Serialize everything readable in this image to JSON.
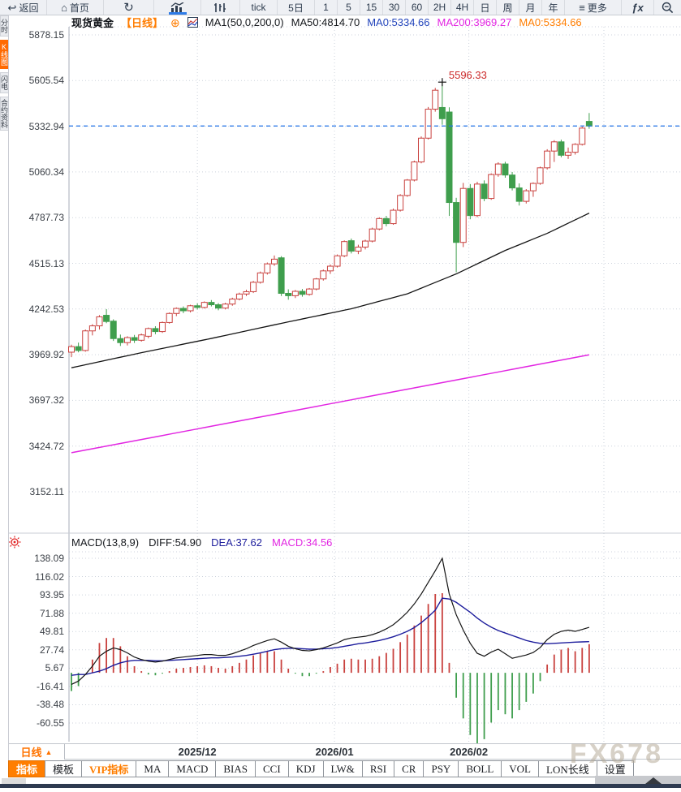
{
  "toolbar": {
    "back": "返回",
    "home": "首页",
    "tick": "tick",
    "five_day": "5日",
    "intervals": [
      "1",
      "5",
      "15",
      "30",
      "60",
      "2H",
      "4H",
      "日",
      "周",
      "月",
      "年"
    ],
    "more": "更多",
    "fx": "ƒx"
  },
  "sidebar": {
    "items": [
      {
        "label": "分时图",
        "active": false
      },
      {
        "label": "K线图",
        "active": true
      },
      {
        "label": "闪电图",
        "active": false
      },
      {
        "label": "合约资料",
        "active": false
      }
    ]
  },
  "chart_header": {
    "symbol": "现货黄金",
    "period": "【日线】",
    "ma_settings": "MA1(50,0,200,0)",
    "ma50": "MA50:4814.70",
    "ma0_blue": "MA0:5334.66",
    "ma200": "MA200:3969.27",
    "ma0_orange": "MA0:5334.66"
  },
  "macd_header": {
    "name": "MACD(13,8,9)",
    "diff": "DIFF:54.90",
    "dea": "DEA:37.62",
    "macd": "MACD:34.56"
  },
  "xaxis": {
    "period_label": "日线",
    "arrow": "▲"
  },
  "tabs": [
    {
      "label": "指标"
    },
    {
      "label": "模板"
    },
    {
      "label": "VIP指标"
    },
    {
      "label": "MA"
    },
    {
      "label": "MACD"
    },
    {
      "label": "BIAS"
    },
    {
      "label": "CCI"
    },
    {
      "label": "KDJ"
    },
    {
      "label": "LW&"
    },
    {
      "label": "RSI"
    },
    {
      "label": "CR"
    },
    {
      "label": "PSY"
    },
    {
      "label": "BOLL"
    },
    {
      "label": "VOL"
    },
    {
      "label": "LON长线"
    },
    {
      "label": "设置"
    }
  ],
  "watermark": "FX678",
  "chart_data": {
    "type": "candlestick",
    "title": "现货黄金 日线",
    "y_ticks_price": [
      5878.15,
      5605.54,
      5332.94,
      5060.34,
      4787.73,
      4515.13,
      4242.53,
      3969.92,
      3697.32,
      3424.72,
      3152.11
    ],
    "y_ticks_macd": [
      138.09,
      116.02,
      93.95,
      71.88,
      49.81,
      27.74,
      5.67,
      -16.41,
      -38.48,
      -60.55
    ],
    "x_labels": [
      {
        "label": "2025/12",
        "day": 18
      },
      {
        "label": "2026/01",
        "day": 37.6
      },
      {
        "label": "2026/02",
        "day": 56.8
      }
    ],
    "extra_grid_day": 76.1,
    "current_price": 5334.66,
    "high_annotation": {
      "value": "5596.33",
      "day": 53,
      "price": 5596.33
    },
    "ma50_anchors": [
      [
        0,
        3892
      ],
      [
        10,
        3982
      ],
      [
        20,
        4067
      ],
      [
        30,
        4157
      ],
      [
        40,
        4244
      ],
      [
        48,
        4333
      ],
      [
        55,
        4452
      ],
      [
        62,
        4592
      ],
      [
        68,
        4694
      ],
      [
        74,
        4814.7
      ]
    ],
    "ma200_anchors": [
      [
        0,
        3385
      ],
      [
        74,
        3969.27
      ]
    ],
    "candles": [
      [
        3985,
        4030,
        3955,
        4018
      ],
      [
        4018,
        4042,
        3984,
        3995
      ],
      [
        3995,
        4120,
        3988,
        4112
      ],
      [
        4112,
        4152,
        4085,
        4142
      ],
      [
        4142,
        4206,
        4120,
        4196
      ],
      [
        4205,
        4242,
        4158,
        4168
      ],
      [
        4170,
        4181,
        4052,
        4066
      ],
      [
        4066,
        4090,
        4022,
        4042
      ],
      [
        4042,
        4080,
        4025,
        4072
      ],
      [
        4072,
        4088,
        4040,
        4056
      ],
      [
        4056,
        4096,
        4048,
        4088
      ],
      [
        4080,
        4132,
        4068,
        4126
      ],
      [
        4126,
        4140,
        4092,
        4108
      ],
      [
        4108,
        4168,
        4100,
        4162
      ],
      [
        4162,
        4222,
        4155,
        4216
      ],
      [
        4216,
        4252,
        4200,
        4246
      ],
      [
        4246,
        4258,
        4218,
        4232
      ],
      [
        4232,
        4268,
        4222,
        4262
      ],
      [
        4262,
        4276,
        4240,
        4252
      ],
      [
        4252,
        4288,
        4245,
        4282
      ],
      [
        4282,
        4296,
        4258,
        4268
      ],
      [
        4268,
        4278,
        4235,
        4248
      ],
      [
        4248,
        4280,
        4240,
        4272
      ],
      [
        4272,
        4310,
        4262,
        4302
      ],
      [
        4302,
        4340,
        4294,
        4332
      ],
      [
        4332,
        4358,
        4320,
        4346
      ],
      [
        4346,
        4410,
        4338,
        4402
      ],
      [
        4402,
        4466,
        4394,
        4458
      ],
      [
        4458,
        4520,
        4448,
        4512
      ],
      [
        4512,
        4562,
        4500,
        4540
      ],
      [
        4548,
        4558,
        4320,
        4336
      ],
      [
        4336,
        4360,
        4298,
        4322
      ],
      [
        4322,
        4356,
        4308,
        4348
      ],
      [
        4348,
        4362,
        4316,
        4330
      ],
      [
        4330,
        4368,
        4322,
        4362
      ],
      [
        4362,
        4428,
        4354,
        4422
      ],
      [
        4422,
        4478,
        4412,
        4470
      ],
      [
        4470,
        4508,
        4452,
        4498
      ],
      [
        4498,
        4568,
        4490,
        4560
      ],
      [
        4560,
        4652,
        4552,
        4645
      ],
      [
        4650,
        4663,
        4574,
        4588
      ],
      [
        4588,
        4626,
        4570,
        4612
      ],
      [
        4612,
        4656,
        4598,
        4648
      ],
      [
        4648,
        4728,
        4640,
        4720
      ],
      [
        4720,
        4790,
        4712,
        4782
      ],
      [
        4782,
        4798,
        4736,
        4752
      ],
      [
        4752,
        4842,
        4745,
        4832
      ],
      [
        4832,
        4928,
        4824,
        4920
      ],
      [
        4920,
        5018,
        4912,
        5012
      ],
      [
        5012,
        5128,
        5004,
        5120
      ],
      [
        5120,
        5272,
        5112,
        5262
      ],
      [
        5262,
        5448,
        5254,
        5435
      ],
      [
        5435,
        5562,
        5420,
        5548
      ],
      [
        5445,
        5596.33,
        5342,
        5378
      ],
      [
        5418,
        5446,
        4798,
        4878
      ],
      [
        4878,
        4906,
        4462,
        4640
      ],
      [
        4640,
        4995,
        4612,
        4962
      ],
      [
        4962,
        4988,
        4778,
        4800
      ],
      [
        4800,
        5002,
        4790,
        4988
      ],
      [
        4988,
        5010,
        4886,
        4902
      ],
      [
        4902,
        5052,
        4894,
        5045
      ],
      [
        5045,
        5118,
        5032,
        5108
      ],
      [
        5108,
        5121,
        5026,
        5042
      ],
      [
        5042,
        5060,
        4950,
        4965
      ],
      [
        4965,
        4992,
        4860,
        4885
      ],
      [
        4885,
        4958,
        4872,
        4948
      ],
      [
        4948,
        4998,
        4912,
        4992
      ],
      [
        4992,
        5092,
        4984,
        5085
      ],
      [
        5085,
        5196,
        5075,
        5185
      ],
      [
        5185,
        5250,
        5120,
        5240
      ],
      [
        5240,
        5253,
        5148,
        5160
      ],
      [
        5160,
        5206,
        5138,
        5178
      ],
      [
        5178,
        5232,
        5164,
        5225
      ],
      [
        5225,
        5330,
        5218,
        5322
      ],
      [
        5362,
        5412,
        5318,
        5334.66
      ]
    ],
    "macd": {
      "diff": [
        -14,
        -10,
        -2,
        8,
        20,
        26,
        30,
        28,
        24,
        19,
        16,
        14,
        13,
        14,
        16,
        18,
        19,
        20,
        21,
        22,
        22,
        21,
        21,
        23,
        26,
        29,
        33,
        36,
        39,
        41,
        37,
        32,
        29,
        27,
        26.5,
        28,
        30,
        33,
        36,
        40,
        42,
        43,
        44,
        46,
        49,
        53,
        58,
        65,
        73,
        83,
        95,
        109,
        123,
        138,
        95,
        70,
        51.5,
        35.5,
        23.5,
        20,
        25,
        28.5,
        23,
        17.5,
        19.5,
        21.5,
        24.5,
        30.5,
        40,
        46.5,
        50,
        51.5,
        50,
        52.3,
        54.9
      ],
      "dea": [
        -3,
        -2,
        -2,
        0,
        2,
        5,
        9,
        12,
        14,
        15,
        15,
        15,
        14.5,
        14.5,
        15,
        15.5,
        16,
        16.5,
        17,
        17.5,
        18,
        18,
        18.5,
        19,
        20,
        21,
        22.5,
        24,
        26,
        28,
        29,
        29.5,
        29.5,
        29,
        28.5,
        28.5,
        29,
        29.5,
        30.5,
        32,
        33.5,
        35,
        36,
        37.5,
        39,
        41,
        43.5,
        46.5,
        50,
        54.5,
        60.5,
        67.5,
        75.5,
        90,
        89,
        85,
        79,
        73,
        66,
        60,
        55,
        51,
        48,
        45,
        42,
        39,
        37,
        35.5,
        35,
        35.5,
        36,
        36.5,
        37,
        37.3,
        37.62
      ]
    },
    "colors": {
      "up": "#c9413e",
      "down": "#3f9e4d",
      "ma50": "#141414",
      "ma200": "#e226e2",
      "dea": "#1c1c9c",
      "diff": "#141414",
      "dashed": "#2273e8",
      "annotation": "#cc2a2a",
      "grid": "#ccd2dc",
      "axis": "#a7adb8"
    }
  }
}
